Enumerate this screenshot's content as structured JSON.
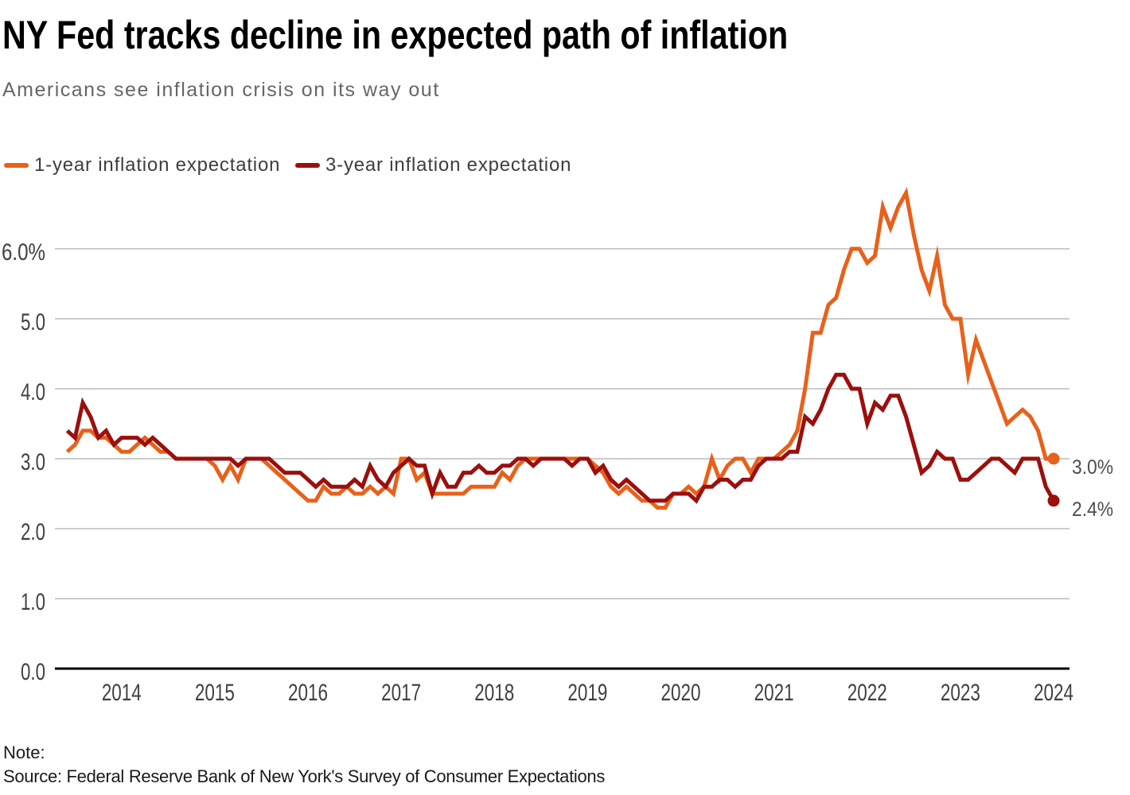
{
  "header": {
    "title": "NY Fed tracks decline in expected path of inflation",
    "subtitle": "Americans see inflation crisis on its way out"
  },
  "legend": {
    "items": [
      {
        "label": "1-year inflation expectation",
        "color": "#E8611A"
      },
      {
        "label": "3-year inflation expectation",
        "color": "#9B0F0D"
      }
    ]
  },
  "chart_data": {
    "type": "line",
    "title": "NY Fed tracks decline in expected path of inflation",
    "subtitle": "Americans see inflation crisis on its way out",
    "x_start": "2013-06",
    "x_end": "2024-01",
    "frequency": "monthly",
    "ylim": [
      0,
      6.9
    ],
    "grid": "horizontal",
    "legend_position": "top-left",
    "y_ticks": [
      {
        "value": 0,
        "label": "0.0"
      },
      {
        "value": 1,
        "label": "1.0"
      },
      {
        "value": 2,
        "label": "2.0"
      },
      {
        "value": 3,
        "label": "3.0"
      },
      {
        "value": 4,
        "label": "4.0"
      },
      {
        "value": 5,
        "label": "5.0"
      },
      {
        "value": 6,
        "label": "6.0%"
      }
    ],
    "x_tick_labels": [
      "2014",
      "2015",
      "2016",
      "2017",
      "2018",
      "2019",
      "2020",
      "2021",
      "2022",
      "2023",
      "2024"
    ],
    "colors": {
      "grid": "#CCCCCC",
      "axis": "#000000",
      "tick_label": "#404040",
      "end_label": "#4D4D4D"
    },
    "series": [
      {
        "id": "1yr",
        "name": "1-year inflation expectation",
        "color": "#E8611A",
        "end_label": "3.0%",
        "end_value": 3.0,
        "values": [
          3.1,
          3.2,
          3.4,
          3.4,
          3.3,
          3.3,
          3.2,
          3.1,
          3.1,
          3.2,
          3.3,
          3.2,
          3.1,
          3.1,
          3.0,
          3.0,
          3.0,
          3.0,
          3.0,
          2.9,
          2.7,
          2.9,
          2.7,
          3.0,
          3.0,
          3.0,
          2.9,
          2.8,
          2.7,
          2.6,
          2.5,
          2.4,
          2.4,
          2.6,
          2.5,
          2.5,
          2.6,
          2.5,
          2.5,
          2.6,
          2.5,
          2.6,
          2.5,
          3.0,
          3.0,
          2.7,
          2.8,
          2.5,
          2.5,
          2.5,
          2.5,
          2.5,
          2.6,
          2.6,
          2.6,
          2.6,
          2.8,
          2.7,
          2.9,
          3.0,
          3.0,
          3.0,
          3.0,
          3.0,
          3.0,
          3.0,
          3.0,
          3.0,
          2.9,
          2.8,
          2.6,
          2.5,
          2.6,
          2.5,
          2.4,
          2.4,
          2.3,
          2.3,
          2.5,
          2.5,
          2.6,
          2.5,
          2.6,
          3.0,
          2.7,
          2.9,
          3.0,
          3.0,
          2.8,
          3.0,
          3.0,
          3.0,
          3.1,
          3.2,
          3.4,
          4.0,
          4.8,
          4.8,
          5.2,
          5.3,
          5.7,
          6.0,
          6.0,
          5.8,
          5.9,
          6.6,
          6.3,
          6.6,
          6.8,
          6.2,
          5.7,
          5.4,
          5.9,
          5.2,
          5.0,
          5.0,
          4.2,
          4.7,
          4.4,
          4.1,
          3.8,
          3.5,
          3.6,
          3.7,
          3.6,
          3.4,
          3.0,
          3.0
        ]
      },
      {
        "id": "3yr",
        "name": "3-year inflation expectation",
        "color": "#9B0F0D",
        "end_label": "2.4%",
        "end_value": 2.4,
        "values": [
          3.4,
          3.3,
          3.8,
          3.6,
          3.3,
          3.4,
          3.2,
          3.3,
          3.3,
          3.3,
          3.2,
          3.3,
          3.2,
          3.1,
          3.0,
          3.0,
          3.0,
          3.0,
          3.0,
          3.0,
          3.0,
          3.0,
          2.9,
          3.0,
          3.0,
          3.0,
          3.0,
          2.9,
          2.8,
          2.8,
          2.8,
          2.7,
          2.6,
          2.7,
          2.6,
          2.6,
          2.6,
          2.7,
          2.6,
          2.9,
          2.7,
          2.6,
          2.8,
          2.9,
          3.0,
          2.9,
          2.9,
          2.5,
          2.8,
          2.6,
          2.6,
          2.8,
          2.8,
          2.9,
          2.8,
          2.8,
          2.9,
          2.9,
          3.0,
          3.0,
          2.9,
          3.0,
          3.0,
          3.0,
          3.0,
          2.9,
          3.0,
          3.0,
          2.8,
          2.9,
          2.7,
          2.6,
          2.7,
          2.6,
          2.5,
          2.4,
          2.4,
          2.4,
          2.5,
          2.5,
          2.5,
          2.4,
          2.6,
          2.6,
          2.7,
          2.7,
          2.6,
          2.7,
          2.7,
          2.9,
          3.0,
          3.0,
          3.0,
          3.1,
          3.1,
          3.6,
          3.5,
          3.7,
          4.0,
          4.2,
          4.2,
          4.0,
          4.0,
          3.5,
          3.8,
          3.7,
          3.9,
          3.9,
          3.6,
          3.2,
          2.8,
          2.9,
          3.1,
          3.0,
          3.0,
          2.7,
          2.7,
          2.8,
          2.9,
          3.0,
          3.0,
          2.9,
          2.8,
          3.0,
          3.0,
          3.0,
          2.6,
          2.4
        ]
      }
    ]
  },
  "footer": {
    "note_label": "Note:",
    "source": "Source: Federal Reserve Bank of New York's Survey of Consumer Expectations"
  }
}
